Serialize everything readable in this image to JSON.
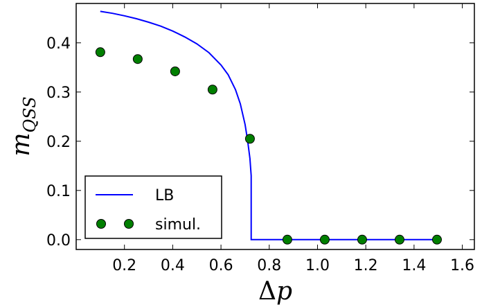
{
  "chart_data": {
    "type": "line",
    "xlabel": "Δp",
    "ylabel": {
      "base": "m",
      "subscript": "QSS"
    },
    "xlim": [
      0.0,
      1.65
    ],
    "ylim": [
      -0.02,
      0.48
    ],
    "x_ticks": [
      0.2,
      0.4,
      0.6,
      0.8,
      1.0,
      1.2,
      1.4,
      1.6
    ],
    "x_tick_labels": [
      "0.2",
      "0.4",
      "0.6",
      "0.8",
      "1.0",
      "1.2",
      "1.4",
      "1.6"
    ],
    "y_ticks": [
      0.0,
      0.1,
      0.2,
      0.3,
      0.4
    ],
    "y_tick_labels": [
      "0.0",
      "0.1",
      "0.2",
      "0.3",
      "0.4"
    ],
    "grid": false,
    "legend_position": "lower-left",
    "series": [
      {
        "name": "LB",
        "kind": "line",
        "color": "#0000ff",
        "x": [
          0.1,
          0.15,
          0.2,
          0.25,
          0.3,
          0.35,
          0.4,
          0.45,
          0.5,
          0.55,
          0.6,
          0.63,
          0.66,
          0.68,
          0.7,
          0.71,
          0.72,
          0.725,
          0.725,
          1.5
        ],
        "y": [
          0.464,
          0.46,
          0.455,
          0.449,
          0.442,
          0.434,
          0.424,
          0.412,
          0.398,
          0.38,
          0.355,
          0.335,
          0.305,
          0.276,
          0.234,
          0.203,
          0.165,
          0.13,
          0.0,
          0.0
        ]
      },
      {
        "name": "simul.",
        "kind": "scatter",
        "color": "#007f00",
        "x": [
          0.1,
          0.255,
          0.41,
          0.565,
          0.72,
          0.875,
          1.03,
          1.185,
          1.34,
          1.495
        ],
        "y": [
          0.381,
          0.367,
          0.342,
          0.305,
          0.205,
          0.0,
          0.0,
          0.0,
          0.0,
          0.0
        ]
      }
    ]
  }
}
